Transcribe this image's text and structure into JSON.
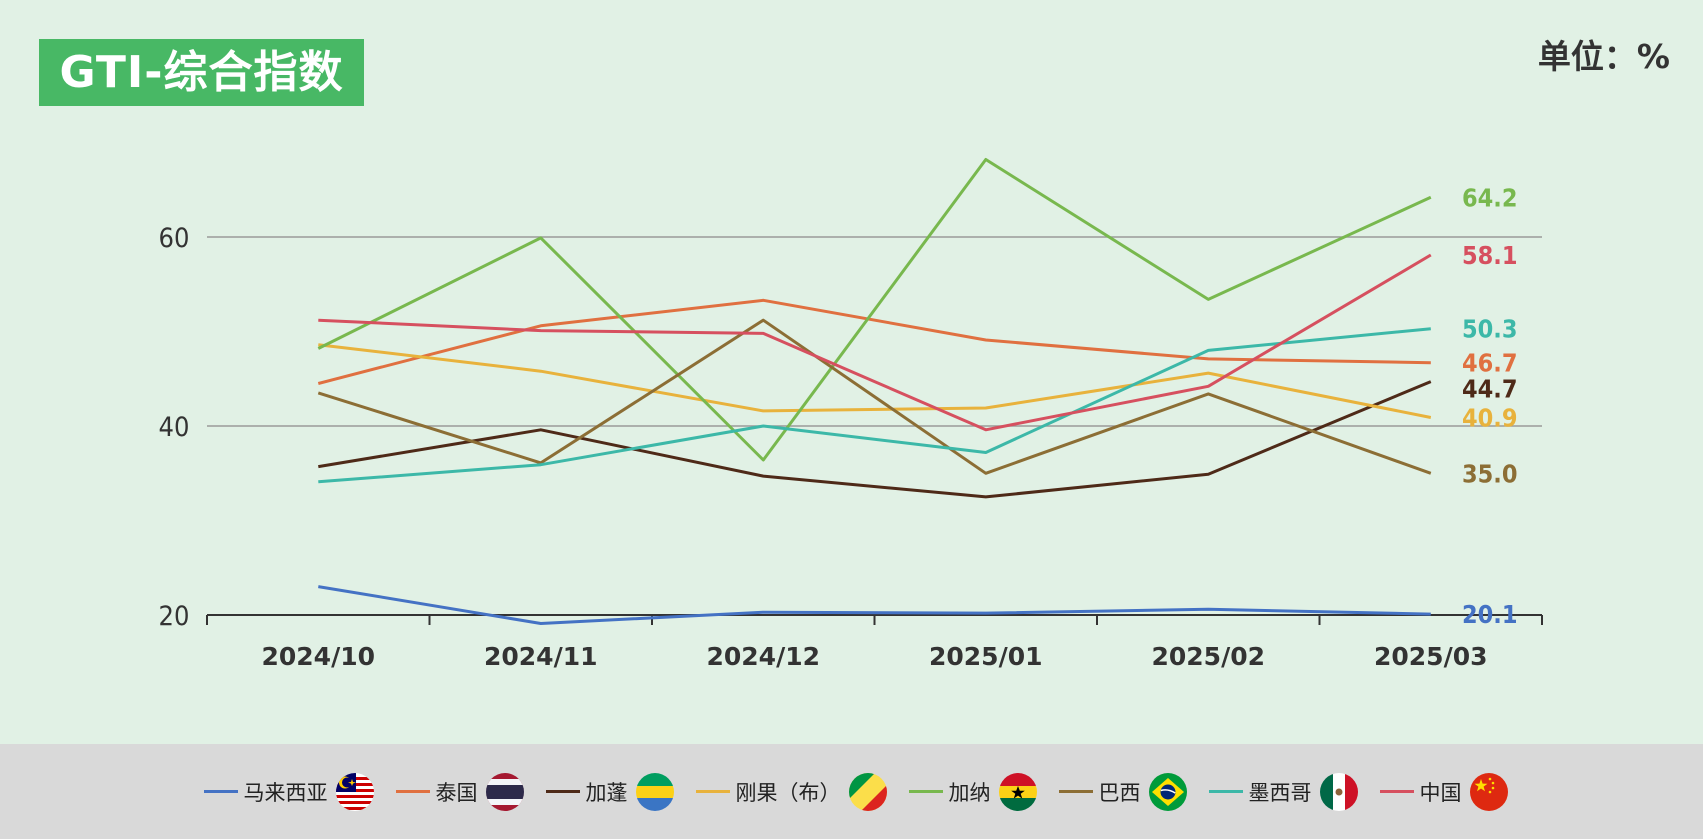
{
  "header": {
    "title": "GTI-综合指数",
    "unit": "单位：%"
  },
  "chart_data": {
    "type": "line",
    "title": "GTI-综合指数",
    "categories": [
      "2024/10",
      "2024/11",
      "2024/12",
      "2025/01",
      "2025/02",
      "2025/03"
    ],
    "ylim": [
      20,
      68
    ],
    "yticks": [
      20,
      40,
      60
    ],
    "grid": true,
    "legend": "bottom",
    "series": [
      {
        "name": "马来西亚",
        "color": "#4472c4",
        "flag": "malaysia-flag-icon",
        "values": [
          23.0,
          19.1,
          20.3,
          20.2,
          20.6,
          20.1
        ],
        "end_label": "20.1"
      },
      {
        "name": "泰国",
        "color": "#e07040",
        "flag": "thailand-flag-icon",
        "values": [
          44.5,
          50.6,
          53.3,
          49.1,
          47.1,
          46.7
        ],
        "end_label": "46.7"
      },
      {
        "name": "加蓬",
        "color": "#4e2a18",
        "flag": "gabon-flag-icon",
        "values": [
          35.7,
          39.6,
          34.7,
          32.5,
          34.9,
          44.7
        ],
        "end_label": "44.7"
      },
      {
        "name": "刚果（布）",
        "color": "#e8b23c",
        "flag": "congo-flag-icon",
        "values": [
          48.6,
          45.8,
          41.6,
          41.9,
          45.6,
          40.9
        ],
        "end_label": "40.9"
      },
      {
        "name": "加纳",
        "color": "#78b84e",
        "flag": "ghana-flag-icon",
        "values": [
          48.2,
          59.9,
          36.4,
          68.2,
          53.4,
          64.2
        ],
        "end_label": "64.2"
      },
      {
        "name": "巴西",
        "color": "#8c6e35",
        "flag": "brazil-flag-icon",
        "values": [
          43.5,
          36.1,
          51.2,
          35.0,
          43.4,
          35.0
        ],
        "end_label": "35.0"
      },
      {
        "name": "墨西哥",
        "color": "#3cb8a8",
        "flag": "mexico-flag-icon",
        "values": [
          34.1,
          35.9,
          40.0,
          37.2,
          48.0,
          50.3
        ],
        "end_label": "50.3"
      },
      {
        "name": "中国",
        "color": "#d6505f",
        "flag": "china-flag-icon",
        "values": [
          51.2,
          50.1,
          49.8,
          39.6,
          44.2,
          58.1
        ],
        "end_label": "58.1"
      }
    ]
  }
}
